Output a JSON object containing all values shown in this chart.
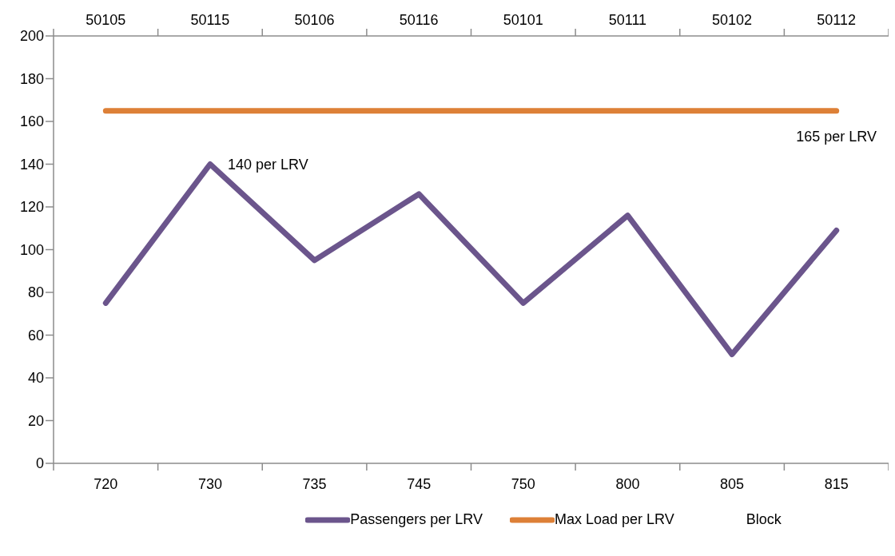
{
  "chart_data": {
    "type": "line",
    "categories": [
      "720",
      "730",
      "735",
      "745",
      "750",
      "800",
      "805",
      "815"
    ],
    "ylim": [
      0,
      200
    ],
    "yticks": [
      0,
      20,
      40,
      60,
      80,
      100,
      120,
      140,
      160,
      180,
      200
    ],
    "grid": false,
    "legend": "bottom",
    "marker": "none",
    "line_style": "solid",
    "series": [
      {
        "name": "Passengers per LRV",
        "color": "#6b558c",
        "values": [
          75,
          140,
          95,
          126,
          75,
          116,
          51,
          109
        ]
      },
      {
        "name": "Max Load per LRV",
        "color": "#dd8037",
        "values": [
          165,
          165,
          165,
          165,
          165,
          165,
          165,
          165
        ]
      },
      {
        "name": "Block",
        "color": null,
        "values": [
          null,
          null,
          null,
          null,
          null,
          null,
          null,
          null
        ]
      }
    ],
    "annotations": [
      {
        "text": "140 per LRV",
        "x": "730",
        "y": 140
      },
      {
        "text": "165 per LRV",
        "x": "815",
        "y": 165
      },
      "50105",
      "50115",
      "50106",
      "50116",
      "50101",
      "50111",
      "50102",
      "50112"
    ]
  }
}
